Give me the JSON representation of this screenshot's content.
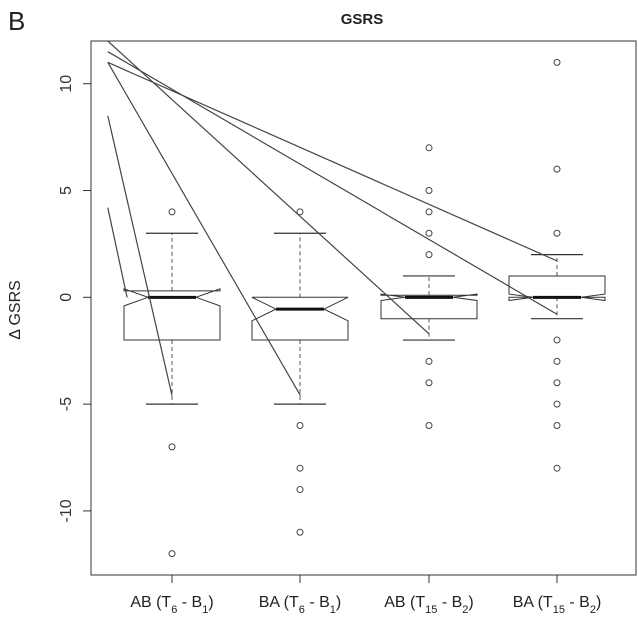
{
  "panel_label": "B",
  "chart_data": {
    "type": "boxplot",
    "title": "GSRS",
    "ylabel": "Δ GSRS",
    "xlabel": "",
    "ylim": [
      -13,
      12
    ],
    "yticks": [
      -10,
      -5,
      0,
      5,
      10
    ],
    "grid": false,
    "notched": true,
    "groups": [
      {
        "label_main": "AB (T",
        "label_sub1": "6",
        "label_mid": " - B",
        "label_sub2": "1",
        "label_end": ")",
        "whisker_low": -5,
        "q1": -2,
        "median": 0,
        "q3": 0.3,
        "whisker_high": 3,
        "notch_low": -0.4,
        "notch_high": 0.4,
        "outliers": [
          4,
          -7,
          -12
        ]
      },
      {
        "label_main": "BA (T",
        "label_sub1": "6",
        "label_mid": " - B",
        "label_sub2": "1",
        "label_end": ")",
        "whisker_low": -5,
        "q1": -2,
        "median": -0.55,
        "q3": 0,
        "whisker_high": 3,
        "notch_low": -1.1,
        "notch_high": 0,
        "outliers": [
          4,
          -6,
          -8,
          -9,
          -11
        ]
      },
      {
        "label_main": "AB (T",
        "label_sub1": "15",
        "label_mid": " - B",
        "label_sub2": "2",
        "label_end": ")",
        "whisker_low": -2,
        "q1": -1,
        "median": 0,
        "q3": 0.1,
        "whisker_high": 1,
        "notch_low": -0.15,
        "notch_high": 0.15,
        "outliers": [
          7,
          5,
          4,
          3,
          2,
          -3,
          -4,
          -6
        ]
      },
      {
        "label_main": "BA (T",
        "label_sub1": "15",
        "label_mid": " - B",
        "label_sub2": "2",
        "label_end": ")",
        "whisker_low": -1,
        "q1": 0,
        "median": 0,
        "q3": 1,
        "whisker_high": 2,
        "notch_low": -0.15,
        "notch_high": 0.15,
        "outliers": [
          11,
          6,
          3,
          -2,
          -3,
          -4,
          -5,
          -6,
          -8
        ]
      }
    ],
    "diagonal_lines": [
      {
        "x0": 0.5,
        "y0": 11.0,
        "x1": 2.0,
        "y1": -4.6
      },
      {
        "x0": 0.5,
        "y0": 8.5,
        "x1": 1.0,
        "y1": -4.6
      },
      {
        "x0": 0.5,
        "y0": 4.2,
        "x1": 0.65,
        "y1": 0.0
      },
      {
        "x0": 0.5,
        "y0": 12.0,
        "x1": 3.0,
        "y1": -1.7
      },
      {
        "x0": 0.5,
        "y0": 11.5,
        "x1": 4.0,
        "y1": -0.8
      },
      {
        "x0": 0.5,
        "y0": 11.0,
        "x1": 4.0,
        "y1": 1.7
      }
    ]
  }
}
